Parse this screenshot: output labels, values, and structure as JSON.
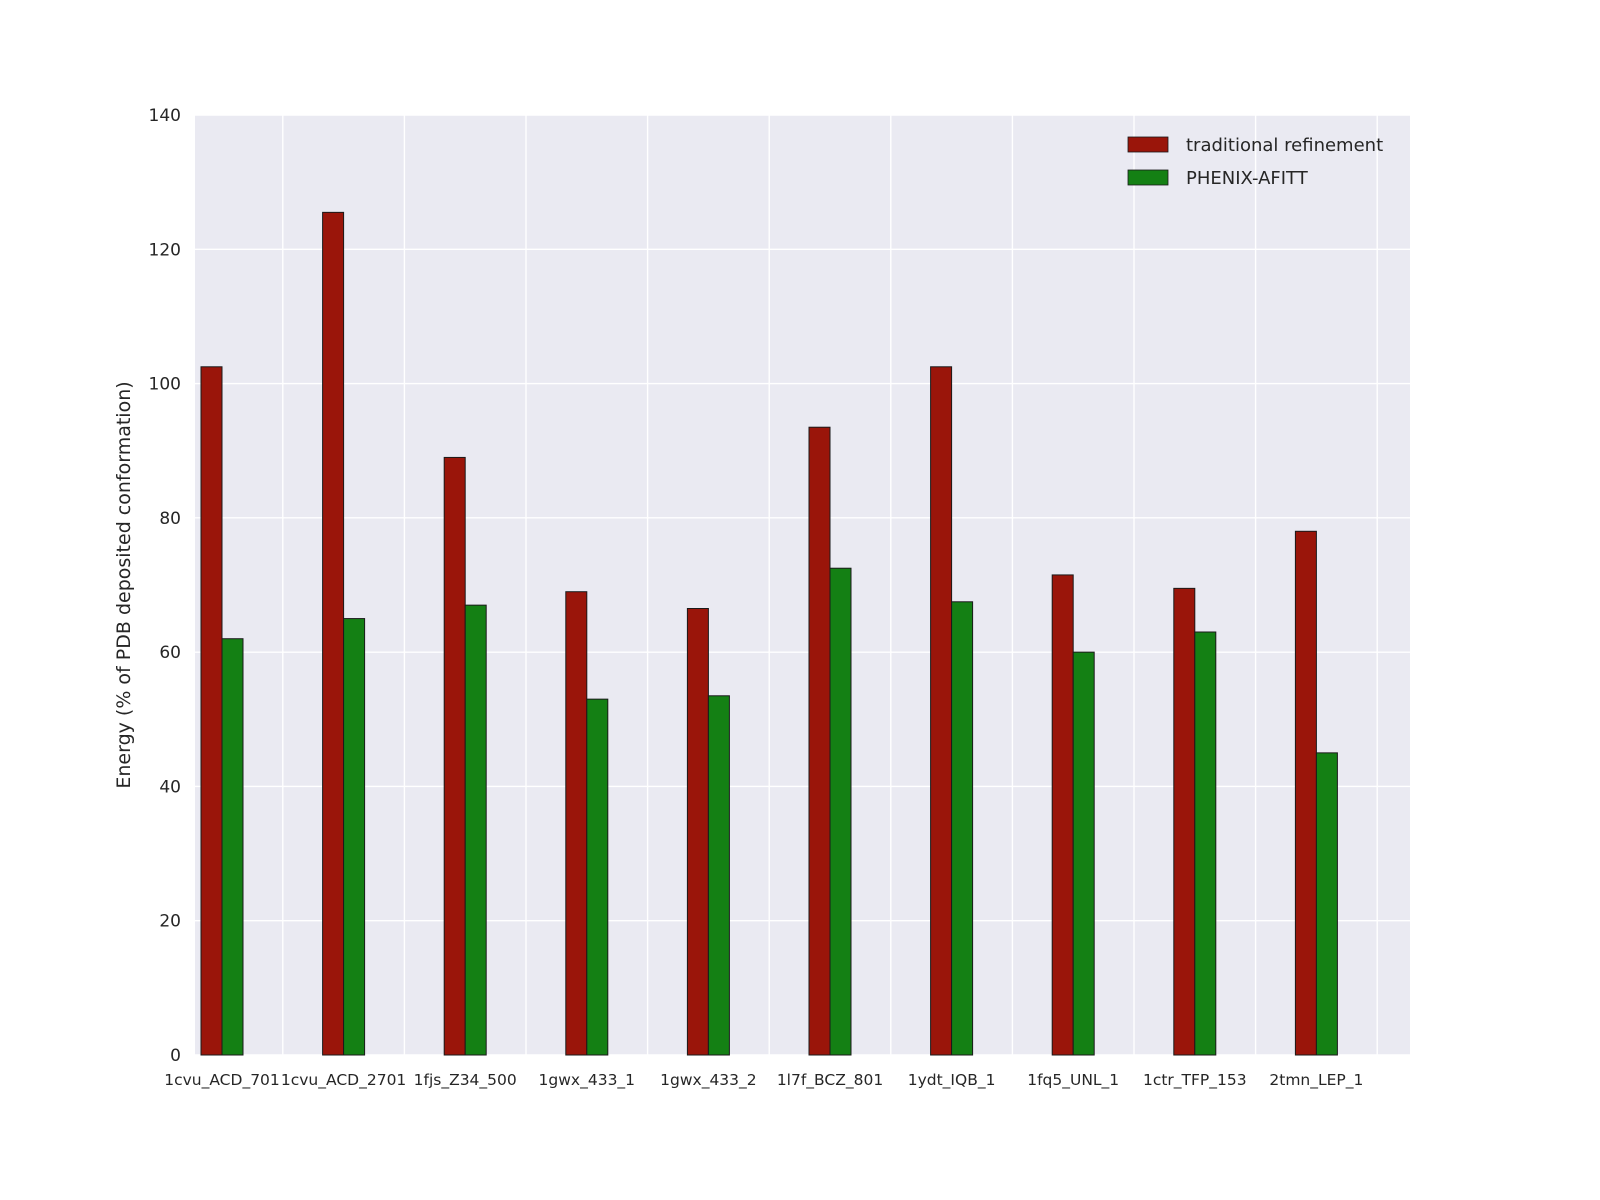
{
  "chart_data": {
    "type": "bar",
    "title": "",
    "xlabel": "",
    "ylabel": "Energy (% of PDB deposited conformation)",
    "ylim": [
      0,
      140
    ],
    "yticks": [
      0,
      20,
      40,
      60,
      80,
      100,
      120,
      140
    ],
    "grid": true,
    "plot_background": "#eaeaf2",
    "gridline_color": "#ffffff",
    "tick_label_color": "#262626",
    "legend_position": "upper right",
    "categories": [
      "1cvu_ACD_701",
      "1cvu_ACD_2701",
      "1fjs_Z34_500",
      "1gwx_433_1",
      "1gwx_433_2",
      "1l7f_BCZ_801",
      "1ydt_IQB_1",
      "1fq5_UNL_1",
      "1ctr_TFP_153",
      "2tmn_LEP_1"
    ],
    "series": [
      {
        "name": "traditional refinement",
        "color": "#9a150a",
        "values": [
          102.5,
          125.5,
          89,
          69,
          66.5,
          93.5,
          102.5,
          71.5,
          69.5,
          78
        ]
      },
      {
        "name": "PHENIX-AFITT",
        "color": "#148014",
        "values": [
          62,
          65,
          67,
          53,
          53.5,
          72.5,
          67.5,
          60,
          63,
          45
        ]
      }
    ]
  }
}
